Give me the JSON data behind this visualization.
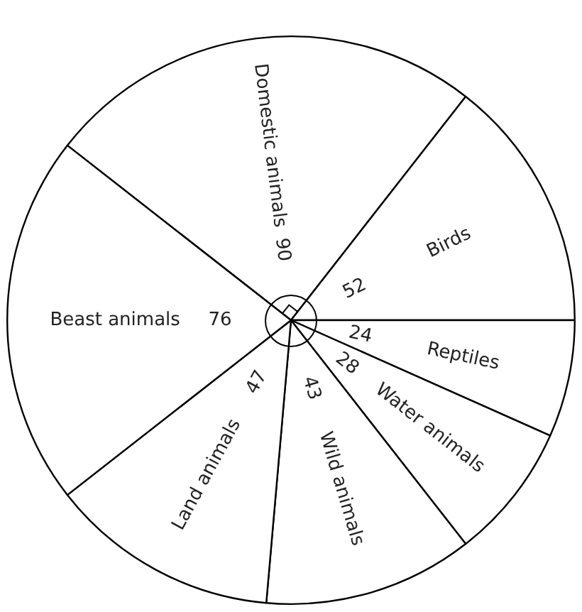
{
  "chart_data": {
    "type": "pie",
    "categories": [
      "Domestic animals",
      "Birds",
      "Reptiles",
      "Water animals",
      "Wild animals",
      "Land animals",
      "Beast animals"
    ],
    "values": [
      90,
      52,
      24,
      28,
      43,
      47,
      76
    ],
    "colors": [
      "#ffffff",
      "#ffffff",
      "#ffffff",
      "#ffffff",
      "#ffffff",
      "#ffffff",
      "#ffffff"
    ],
    "data_labels": true,
    "legend": false
  }
}
